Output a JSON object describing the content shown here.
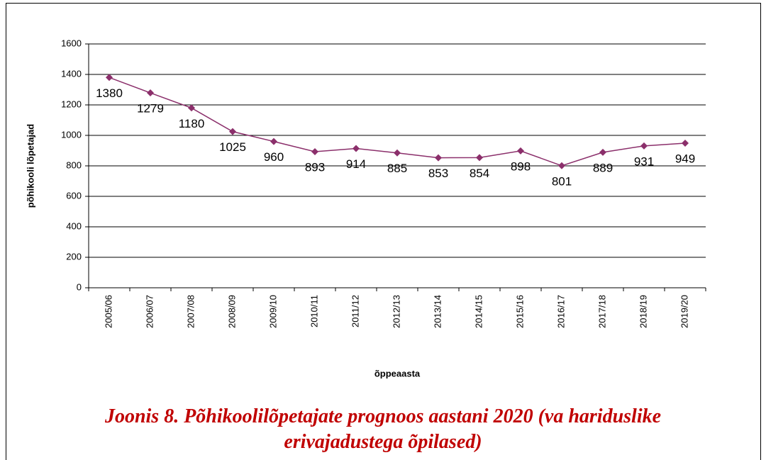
{
  "chart_data": {
    "type": "line",
    "caption": "Joonis 8. Põhikoolilõpetajate prognoos aastani 2020 (va hariduslike erivajadustega õpilased)",
    "x_label": "õppeaasta",
    "y_label": "põhikooli lõpetajad",
    "categories": [
      "2005/06",
      "2006/07",
      "2007/08",
      "2008/09",
      "2009/10",
      "2010/11",
      "2011/12",
      "2012/13",
      "2013/14",
      "2014/15",
      "2015/16",
      "2016/17",
      "2017/18",
      "2018/19",
      "2019/20"
    ],
    "series": [
      {
        "name": "põhikooli lõpetajad",
        "color": "#8b2f6b",
        "values": [
          1380,
          1279,
          1180,
          1025,
          960,
          893,
          914,
          885,
          853,
          854,
          898,
          801,
          889,
          931,
          949
        ]
      }
    ],
    "ylim": [
      0,
      1600
    ],
    "yticks": [
      0,
      200,
      400,
      600,
      800,
      1000,
      1200,
      1400,
      1600
    ],
    "grid": true
  }
}
